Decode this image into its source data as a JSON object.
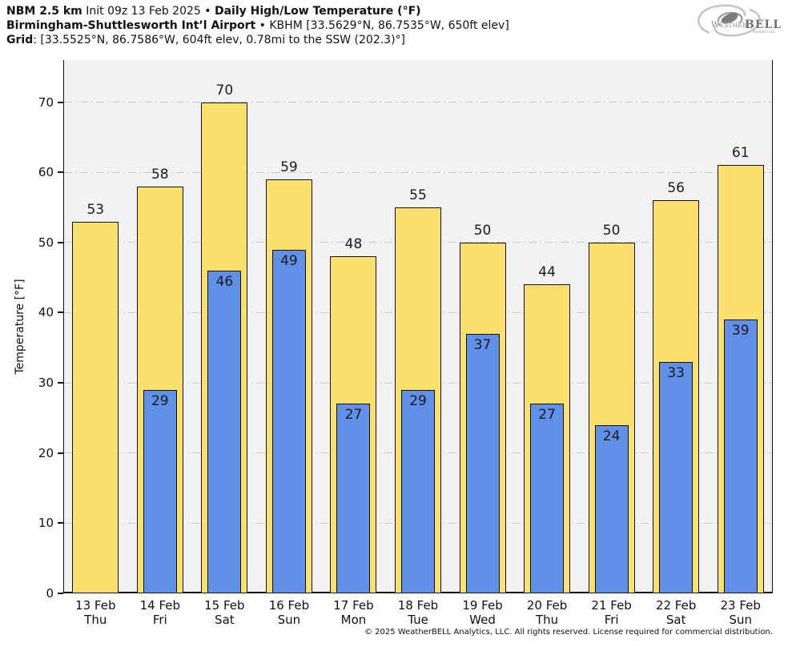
{
  "title": {
    "model": "NBM 2.5 km",
    "init": " Init 09z 13 Feb 2025 • ",
    "product": "Daily High/Low Temperature (°F)",
    "station_name": "Birmingham-Shuttlesworth Intʼl Airport",
    "station_meta": " • KBHM [33.5629°N, 86.7535°W, 650ft elev]",
    "grid_label": "Grid",
    "grid_meta": ": [33.5525°N, 86.7586°W, 604ft elev, 0.78mi to the SSW (202.3)°]"
  },
  "logo": {
    "weather": "Weather",
    "bell": "BELL",
    "sub": "Analytics LLC"
  },
  "chart_data": {
    "type": "bar",
    "title": "Daily High/Low Temperature (°F)",
    "categories": [
      {
        "date": "13 Feb",
        "day": "Thu"
      },
      {
        "date": "14 Feb",
        "day": "Fri"
      },
      {
        "date": "15 Feb",
        "day": "Sat"
      },
      {
        "date": "16 Feb",
        "day": "Sun"
      },
      {
        "date": "17 Feb",
        "day": "Mon"
      },
      {
        "date": "18 Feb",
        "day": "Tue"
      },
      {
        "date": "19 Feb",
        "day": "Wed"
      },
      {
        "date": "20 Feb",
        "day": "Thu"
      },
      {
        "date": "21 Feb",
        "day": "Fri"
      },
      {
        "date": "22 Feb",
        "day": "Sat"
      },
      {
        "date": "23 Feb",
        "day": "Sun"
      }
    ],
    "series": [
      {
        "name": "High",
        "color": "#fce06e",
        "values": [
          53,
          58,
          70,
          59,
          48,
          55,
          50,
          44,
          50,
          56,
          61
        ]
      },
      {
        "name": "Low",
        "color": "#6090e8",
        "values": [
          null,
          29,
          46,
          49,
          27,
          29,
          37,
          27,
          24,
          33,
          39
        ]
      }
    ],
    "ylabel": "Temperature [°F]",
    "yticks": [
      0,
      10,
      20,
      30,
      40,
      50,
      60,
      70
    ],
    "ylim": [
      0,
      76
    ],
    "grid": true,
    "plot_background": "#f2f2f2",
    "gridline_color": "#c9c9c9",
    "bar_border_color": "#111111",
    "legend_position": "none"
  },
  "footer": {
    "text": "© 2025 WeatherBELL Analytics, LLC. All rights reserved. License required for commercial distribution."
  }
}
